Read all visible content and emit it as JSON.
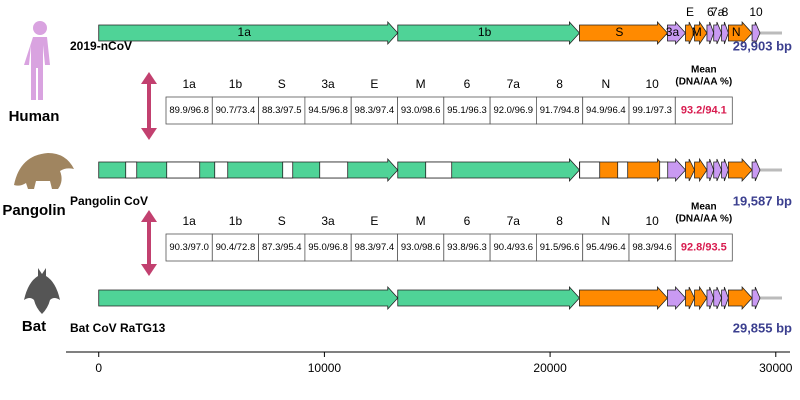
{
  "axis": {
    "xlim": [
      -1450,
      30630
    ],
    "xticks": [
      0,
      10000,
      20000,
      30000
    ]
  },
  "genes": [
    {
      "label": "1a",
      "start": 0,
      "end": 13250,
      "color": "#4fd397"
    },
    {
      "label": "1b",
      "start": 13250,
      "end": 21300,
      "color": "#4fd397"
    },
    {
      "label": "S",
      "start": 21300,
      "end": 25200,
      "color": "#ff8a00"
    },
    {
      "label": "3a",
      "start": 25200,
      "end": 26000,
      "color": "#c99af2"
    },
    {
      "label": "E",
      "start": 26000,
      "end": 26400,
      "color": "#ff8a00"
    },
    {
      "label": "M",
      "start": 26400,
      "end": 26950,
      "color": "#ff8a00"
    },
    {
      "label": "6",
      "start": 26950,
      "end": 27250,
      "color": "#c99af2"
    },
    {
      "label": "7a",
      "start": 27250,
      "end": 27600,
      "color": "#c99af2"
    },
    {
      "label": "8",
      "start": 27600,
      "end": 27900,
      "color": "#c99af2"
    },
    {
      "label": "N",
      "start": 27900,
      "end": 28950,
      "color": "#ff8a00"
    },
    {
      "label": "10",
      "start": 28950,
      "end": 29300,
      "color": "#c99af2"
    }
  ],
  "tracks": [
    {
      "host": "Human",
      "name": "2019-nCoV",
      "length": "29,903 bp"
    },
    {
      "host": "Pangolin",
      "name": "Pangolin CoV",
      "length": "19,587 bp",
      "gaps": [
        {
          "start": 1196,
          "end": 1684
        },
        {
          "start": 3013,
          "end": 4475
        },
        {
          "start": 5140,
          "end": 5716
        },
        {
          "start": 8152,
          "end": 8596
        },
        {
          "start": 9792,
          "end": 11032
        },
        {
          "start": 14488,
          "end": 15640
        },
        {
          "start": 21311,
          "end": 22198
        },
        {
          "start": 22995,
          "end": 23438
        },
        {
          "start": 24856,
          "end": 25211
        }
      ]
    },
    {
      "host": "Bat",
      "name": "Bat CoV RaTG13",
      "length": "29,855 bp"
    }
  ],
  "tables": [
    {
      "header": [
        "1a",
        "1b",
        "S",
        "3a",
        "E",
        "M",
        "6",
        "7a",
        "8",
        "N",
        "10"
      ],
      "mean_header": [
        "Mean",
        "(DNA/AA %)"
      ],
      "values": [
        "89.9/96.8",
        "90.7/73.4",
        "88.3/97.5",
        "94.5/96.8",
        "98.3/97.4",
        "93.0/98.6",
        "95.1/96.3",
        "92.0/96.9",
        "91.7/94.8",
        "94.9/96.4",
        "99.1/97.3"
      ],
      "mean": "93.2/94.1"
    },
    {
      "header": [
        "1a",
        "1b",
        "S",
        "3a",
        "E",
        "M",
        "6",
        "7a",
        "8",
        "N",
        "10"
      ],
      "mean_header": [
        "Mean",
        "(DNA/AA %)"
      ],
      "values": [
        "90.3/97.0",
        "90.4/72.8",
        "87.3/95.4",
        "95.0/96.8",
        "98.3/97.4",
        "93.0/98.6",
        "93.8/96.3",
        "90.4/93.6",
        "91.5/96.6",
        "95.4/96.4",
        "98.3/94.6"
      ],
      "mean": "92.8/93.5"
    }
  ]
}
